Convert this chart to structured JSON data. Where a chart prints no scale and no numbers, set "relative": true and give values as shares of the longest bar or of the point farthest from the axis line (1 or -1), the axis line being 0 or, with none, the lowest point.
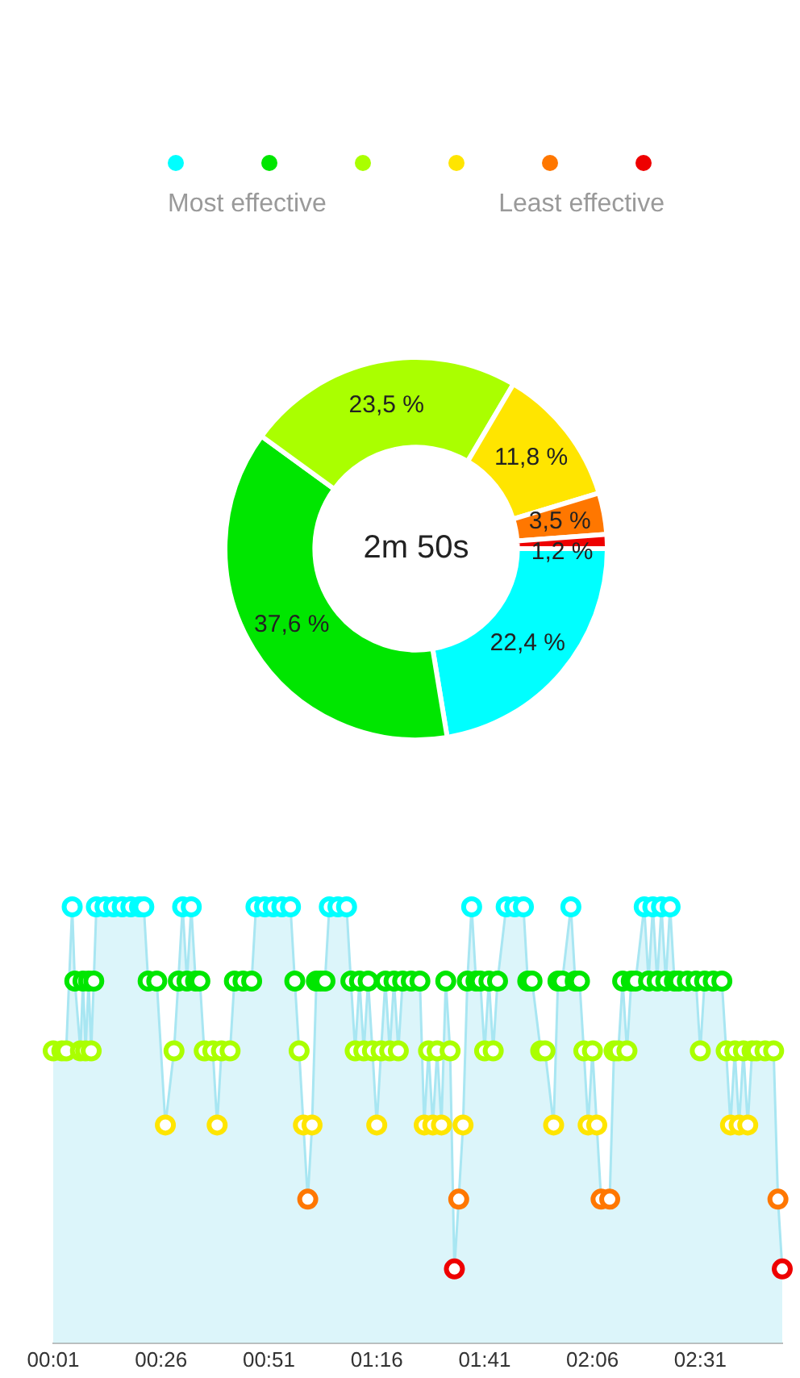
{
  "chart_data": [
    {
      "type": "donut",
      "categories": [
        null,
        null,
        null,
        null,
        null,
        null
      ],
      "values": [
        22.4,
        37.6,
        23.5,
        11.8,
        3.5,
        1.2
      ],
      "colors": [
        "#00ffff",
        "#00e600",
        "#aaff00",
        "#ffe500",
        "#ff7700",
        "#ee0000"
      ],
      "value_labels": [
        "22,4 %",
        "37,6 %",
        "23,5 %",
        "11,8 %",
        "3,5 %",
        "1,2 %"
      ],
      "annotations": [
        "Most effective",
        "Least effective",
        "2m 50s"
      ]
    },
    {
      "type": "area",
      "relative": true,
      "marker": "circle",
      "grid": false,
      "tick_labels": "x",
      "color": "#a8e6f2",
      "x": [
        1,
        3,
        4,
        5.4,
        6,
        7.3,
        7.9,
        8.5,
        9.2,
        9.8,
        10.4,
        11,
        13,
        15,
        17,
        19,
        21,
        22,
        23,
        25,
        27,
        29,
        30,
        31,
        32,
        33,
        34,
        35,
        36,
        38,
        39,
        40,
        42,
        43,
        45,
        47,
        48,
        50,
        52,
        54,
        56,
        57,
        58,
        59,
        60,
        61,
        62,
        63,
        64,
        65,
        67,
        69,
        70,
        71,
        72,
        73,
        74,
        75,
        76,
        77,
        78,
        79,
        80,
        81,
        82,
        84,
        86,
        87,
        88,
        89,
        90,
        91,
        92,
        93,
        94,
        95,
        96,
        97,
        98,
        99,
        100,
        101,
        102,
        103,
        104,
        106,
        108,
        110,
        111,
        112,
        114,
        115,
        117,
        118,
        119,
        121,
        122,
        123,
        124,
        125,
        126,
        127,
        128,
        130,
        131,
        132,
        133,
        134,
        135,
        136,
        138,
        139,
        140,
        141,
        142,
        143,
        144,
        145,
        146,
        148,
        150,
        151,
        152,
        154,
        156,
        157,
        158,
        159,
        160,
        161,
        162,
        163,
        164,
        166,
        168,
        169,
        170
      ],
      "values": [
        0.67,
        0.67,
        0.67,
        1,
        0.83,
        0.67,
        0.83,
        0.67,
        0.83,
        0.67,
        0.83,
        1,
        1,
        1,
        1,
        1,
        1,
        1,
        0.83,
        0.83,
        0.5,
        0.67,
        0.83,
        1,
        0.83,
        1,
        0.83,
        0.83,
        0.67,
        0.67,
        0.5,
        0.67,
        0.67,
        0.83,
        0.83,
        0.83,
        1,
        1,
        1,
        1,
        1,
        0.83,
        0.67,
        0.5,
        0.33,
        0.5,
        0.83,
        0.83,
        0.83,
        1,
        1,
        1,
        0.83,
        0.67,
        0.83,
        0.67,
        0.83,
        0.67,
        0.5,
        0.67,
        0.83,
        0.67,
        0.83,
        0.67,
        0.83,
        0.83,
        0.83,
        0.5,
        0.67,
        0.5,
        0.67,
        0.5,
        0.83,
        0.67,
        0.17,
        0.33,
        0.5,
        0.83,
        1,
        0.83,
        0.83,
        0.67,
        0.83,
        0.67,
        0.83,
        1,
        1,
        1,
        0.83,
        0.83,
        0.67,
        0.67,
        0.5,
        0.83,
        0.83,
        1,
        0.83,
        0.83,
        0.67,
        0.5,
        0.67,
        0.5,
        0.33,
        0.33,
        0.67,
        0.67,
        0.83,
        0.67,
        0.83,
        0.83,
        1,
        0.83,
        1,
        0.83,
        1,
        0.83,
        1,
        0.83,
        0.83,
        0.83,
        0.83,
        0.67,
        0.83,
        0.83,
        0.83,
        0.67,
        0.5,
        0.67,
        0.5,
        0.67,
        0.5,
        0.67,
        0.67,
        0.67,
        0.67,
        0.33,
        0.17
      ],
      "colors": [
        "#aaff00",
        "#aaff00",
        "#aaff00",
        "#00ffff",
        "#00e600",
        "#aaff00",
        "#00e600",
        "#aaff00",
        "#00e600",
        "#aaff00",
        "#00e600",
        "#00ffff",
        "#00ffff",
        "#00ffff",
        "#00ffff",
        "#00ffff",
        "#00ffff",
        "#00ffff",
        "#00e600",
        "#00e600",
        "#ffe500",
        "#aaff00",
        "#00e600",
        "#00ffff",
        "#00e600",
        "#00ffff",
        "#00e600",
        "#00e600",
        "#aaff00",
        "#aaff00",
        "#ffe500",
        "#aaff00",
        "#aaff00",
        "#00e600",
        "#00e600",
        "#00e600",
        "#00ffff",
        "#00ffff",
        "#00ffff",
        "#00ffff",
        "#00ffff",
        "#00e600",
        "#aaff00",
        "#ffe500",
        "#ff7700",
        "#ffe500",
        "#00e600",
        "#00e600",
        "#00e600",
        "#00ffff",
        "#00ffff",
        "#00ffff",
        "#00e600",
        "#aaff00",
        "#00e600",
        "#aaff00",
        "#00e600",
        "#aaff00",
        "#ffe500",
        "#aaff00",
        "#00e600",
        "#aaff00",
        "#00e600",
        "#aaff00",
        "#00e600",
        "#00e600",
        "#00e600",
        "#ffe500",
        "#aaff00",
        "#ffe500",
        "#aaff00",
        "#ffe500",
        "#00e600",
        "#aaff00",
        "#ee0000",
        "#ff7700",
        "#ffe500",
        "#00e600",
        "#00ffff",
        "#00e600",
        "#00e600",
        "#aaff00",
        "#00e600",
        "#aaff00",
        "#00e600",
        "#00ffff",
        "#00ffff",
        "#00ffff",
        "#00e600",
        "#00e600",
        "#aaff00",
        "#aaff00",
        "#ffe500",
        "#00e600",
        "#00e600",
        "#00ffff",
        "#00e600",
        "#00e600",
        "#aaff00",
        "#ffe500",
        "#aaff00",
        "#ffe500",
        "#ff7700",
        "#ff7700",
        "#aaff00",
        "#aaff00",
        "#00e600",
        "#aaff00",
        "#00e600",
        "#00e600",
        "#00ffff",
        "#00e600",
        "#00ffff",
        "#00e600",
        "#00ffff",
        "#00e600",
        "#00ffff",
        "#00e600",
        "#00e600",
        "#00e600",
        "#00e600",
        "#aaff00",
        "#00e600",
        "#00e600",
        "#00e600",
        "#aaff00",
        "#ffe500",
        "#aaff00",
        "#ffe500",
        "#aaff00",
        "#ffe500",
        "#aaff00",
        "#aaff00",
        "#aaff00",
        "#aaff00",
        "#ff7700",
        "#ee0000"
      ],
      "xlim": [
        1,
        170
      ],
      "xticks": [
        {
          "value": 1,
          "label": "00:01"
        },
        {
          "value": 26,
          "label": "00:26"
        },
        {
          "value": 51,
          "label": "00:51"
        },
        {
          "value": 76,
          "label": "01:16"
        },
        {
          "value": 101,
          "label": "01:41"
        },
        {
          "value": 126,
          "label": "02:06"
        },
        {
          "value": 151,
          "label": "02:31"
        }
      ]
    }
  ]
}
